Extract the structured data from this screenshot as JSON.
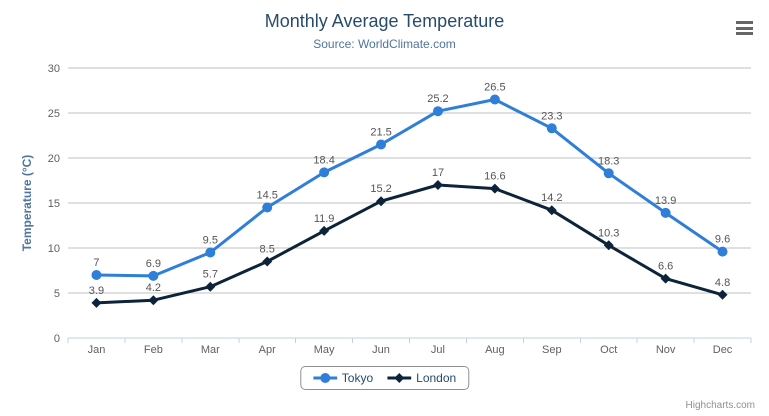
{
  "header": {
    "title": "Monthly Average Temperature",
    "subtitle": "Source: WorldClimate.com"
  },
  "credits": "Highcharts.com",
  "chart_data": {
    "type": "line",
    "categories": [
      "Jan",
      "Feb",
      "Mar",
      "Apr",
      "May",
      "Jun",
      "Jul",
      "Aug",
      "Sep",
      "Oct",
      "Nov",
      "Dec"
    ],
    "series": [
      {
        "name": "Tokyo",
        "color": "#2f7ed8",
        "marker": "circle",
        "values": [
          7,
          6.9,
          9.5,
          14.5,
          18.4,
          21.5,
          25.2,
          26.5,
          23.3,
          18.3,
          13.9,
          9.6
        ]
      },
      {
        "name": "London",
        "color": "#0d233a",
        "marker": "diamond",
        "values": [
          3.9,
          4.2,
          5.7,
          8.5,
          11.9,
          15.2,
          17,
          16.6,
          14.2,
          10.3,
          6.6,
          4.8
        ]
      }
    ],
    "title": "Monthly Average Temperature",
    "subtitle": "Source: WorldClimate.com",
    "xlabel": "",
    "ylabel": "Temperature (°C)",
    "ylim": [
      0,
      30
    ],
    "ytick": 5,
    "grid": true,
    "data_labels": true,
    "legend_position": "bottom",
    "colors": {
      "grid_line": "#c0c0c0",
      "axis_line": "#c0d0e0",
      "axis_label": "#606060",
      "data_label": "#555555"
    }
  }
}
